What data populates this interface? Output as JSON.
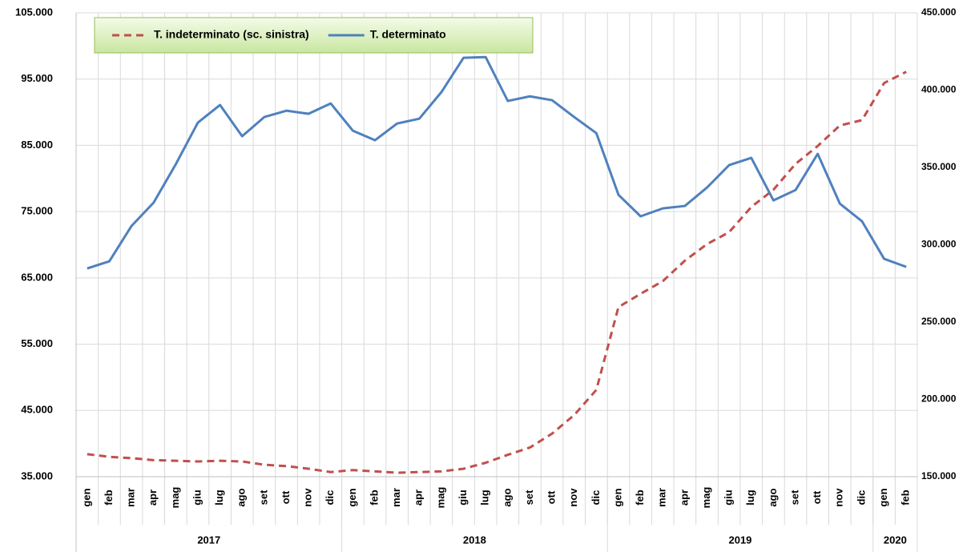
{
  "chart_data": {
    "type": "line",
    "categories": [
      "gen",
      "feb",
      "mar",
      "apr",
      "mag",
      "giu",
      "lug",
      "ago",
      "set",
      "ott",
      "nov",
      "dic",
      "gen",
      "feb",
      "mar",
      "apr",
      "mag",
      "giu",
      "lug",
      "ago",
      "set",
      "ott",
      "nov",
      "dic",
      "gen",
      "feb",
      "mar",
      "apr",
      "mag",
      "giu",
      "lug",
      "ago",
      "set",
      "ott",
      "nov",
      "dic",
      "gen",
      "feb"
    ],
    "x_groups": [
      {
        "label": "2017",
        "count": 12
      },
      {
        "label": "2018",
        "count": 12
      },
      {
        "label": "2019",
        "count": 12
      },
      {
        "label": "2020",
        "count": 2
      }
    ],
    "series": [
      {
        "name": "T. indeterminato (sc. sinistra)",
        "color": "#c0504d",
        "dashed": true,
        "axis": "y",
        "values": [
          38400,
          38000,
          37800,
          37500,
          37400,
          37300,
          37400,
          37300,
          36800,
          36600,
          36200,
          35700,
          36000,
          35800,
          35600,
          35700,
          35800,
          36200,
          37100,
          38300,
          39400,
          41500,
          44300,
          48100,
          60600,
          62600,
          64500,
          67600,
          70100,
          71900,
          75700,
          78300,
          82200,
          84900,
          88000,
          88800,
          94400,
          96100
        ]
      },
      {
        "name": "T. determinato",
        "color": "#4f81bd",
        "dashed": false,
        "axis": "y2",
        "values": [
          284700,
          289300,
          312100,
          327200,
          352000,
          379000,
          390400,
          370200,
          382600,
          386700,
          384700,
          391400,
          373800,
          367600,
          378400,
          381500,
          398700,
          420900,
          421400,
          393000,
          396000,
          393500,
          382600,
          372200,
          332300,
          318400,
          323500,
          325100,
          337000,
          351500,
          356200,
          328700,
          335400,
          358800,
          326600,
          315200,
          290900,
          285700
        ]
      }
    ],
    "ylim": [
      35000,
      105000
    ],
    "yticks": [
      {
        "value": 35000,
        "label": "35.000"
      },
      {
        "value": 45000,
        "label": "45.000"
      },
      {
        "value": 55000,
        "label": "55.000"
      },
      {
        "value": 65000,
        "label": "65.000"
      },
      {
        "value": 75000,
        "label": "75.000"
      },
      {
        "value": 85000,
        "label": "85.000"
      },
      {
        "value": 95000,
        "label": "95.000"
      },
      {
        "value": 105000,
        "label": "105.000"
      }
    ],
    "y2lim": [
      150000,
      450000
    ],
    "y2ticks": [
      {
        "value": 150000,
        "label": "150.000"
      },
      {
        "value": 200000,
        "label": "200.000"
      },
      {
        "value": 250000,
        "label": "250.000"
      },
      {
        "value": 300000,
        "label": "300.000"
      },
      {
        "value": 350000,
        "label": "350.000"
      },
      {
        "value": 400000,
        "label": "400.000"
      },
      {
        "value": 450000,
        "label": "450.000"
      }
    ],
    "grid": true,
    "legend": "top-left"
  }
}
